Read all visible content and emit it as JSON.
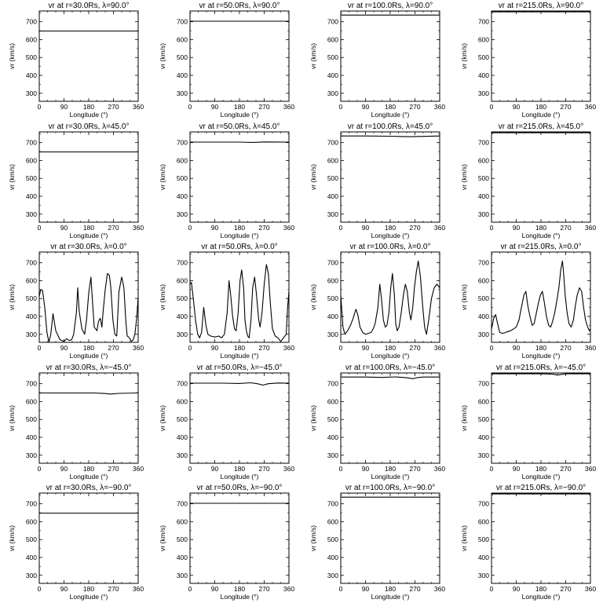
{
  "chart_data": {
    "type": "line",
    "layout": "5x4 grid",
    "xlabel": "Longitude (°)",
    "ylabel": "vr (km/s)",
    "xlim": [
      0,
      360
    ],
    "ylim": [
      255,
      760
    ],
    "xticks": [
      0,
      90,
      180,
      270,
      360
    ],
    "yticks": [
      300,
      400,
      500,
      600,
      700
    ],
    "line_color": "#000000",
    "grid": false,
    "panels": [
      {
        "title": "vr at r=30.0Rs, λ=90.0°",
        "radius": "30.0Rs",
        "latitude": "90.0°",
        "x": [
          0,
          360
        ],
        "y": [
          648,
          648
        ]
      },
      {
        "title": "vr at r=50.0Rs, λ=90.0°",
        "radius": "50.0Rs",
        "latitude": "90.0°",
        "x": [
          0,
          360
        ],
        "y": [
          703,
          703
        ]
      },
      {
        "title": "vr at r=100.0Rs, λ=90.0°",
        "radius": "100.0Rs",
        "latitude": "90.0°",
        "x": [
          0,
          360
        ],
        "y": [
          737,
          737
        ]
      },
      {
        "title": "vr at r=215.0Rs, λ=90.0°",
        "radius": "215.0Rs",
        "latitude": "90.0°",
        "x": [
          0,
          360
        ],
        "y": [
          755,
          755
        ]
      },
      {
        "title": "vr at r=30.0Rs, λ=45.0°",
        "radius": "30.0Rs",
        "latitude": "45.0°",
        "x": [
          0,
          360
        ],
        "y": [
          648,
          648
        ]
      },
      {
        "title": "vr at r=50.0Rs, λ=45.0°",
        "radius": "50.0Rs",
        "latitude": "45.0°",
        "x": [
          0,
          180,
          230,
          270,
          360
        ],
        "y": [
          703,
          703,
          701,
          704,
          703
        ]
      },
      {
        "title": "vr at r=100.0Rs, λ=45.0°",
        "radius": "100.0Rs",
        "latitude": "45.0°",
        "x": [
          0,
          90,
          180,
          250,
          300,
          360
        ],
        "y": [
          737,
          737,
          736,
          733,
          735,
          737
        ]
      },
      {
        "title": "vr at r=215.0Rs, λ=45.0°",
        "radius": "215.0Rs",
        "latitude": "45.0°",
        "x": [
          0,
          360
        ],
        "y": [
          755,
          755
        ]
      },
      {
        "title": "vr at r=30.0Rs, λ=0.0°",
        "radius": "30.0Rs",
        "latitude": "0.0°",
        "x": [
          0,
          5,
          12,
          20,
          28,
          35,
          42,
          50,
          60,
          75,
          90,
          100,
          110,
          118,
          125,
          135,
          140,
          145,
          155,
          165,
          172,
          180,
          188,
          195,
          200,
          210,
          215,
          222,
          228,
          232,
          240,
          248,
          255,
          260,
          268,
          275,
          282,
          290,
          300,
          308,
          315,
          320,
          325,
          330,
          335,
          342,
          348,
          355,
          360
        ],
        "y": [
          510,
          550,
          545,
          450,
          310,
          255,
          300,
          415,
          320,
          270,
          260,
          275,
          265,
          270,
          300,
          420,
          560,
          430,
          330,
          300,
          380,
          530,
          620,
          450,
          340,
          320,
          370,
          390,
          340,
          420,
          550,
          640,
          630,
          570,
          380,
          300,
          290,
          540,
          620,
          560,
          370,
          290,
          285,
          275,
          260,
          270,
          300,
          400,
          510
        ]
      },
      {
        "title": "vr at r=50.0Rs, λ=0.0°",
        "radius": "50.0Rs",
        "latitude": "0.0°",
        "x": [
          0,
          5,
          12,
          20,
          28,
          35,
          42,
          50,
          58,
          65,
          75,
          90,
          105,
          115,
          125,
          135,
          142,
          148,
          155,
          162,
          168,
          175,
          182,
          188,
          195,
          200,
          205,
          210,
          215,
          222,
          228,
          235,
          242,
          250,
          255,
          262,
          270,
          278,
          285,
          292,
          300,
          310,
          320,
          330,
          340,
          350,
          355,
          360
        ],
        "y": [
          580,
          590,
          500,
          380,
          300,
          280,
          310,
          450,
          350,
          300,
          290,
          285,
          290,
          280,
          300,
          420,
          600,
          520,
          400,
          330,
          320,
          420,
          600,
          660,
          560,
          380,
          320,
          290,
          280,
          380,
          560,
          620,
          520,
          380,
          340,
          420,
          580,
          690,
          640,
          480,
          330,
          290,
          280,
          260,
          280,
          300,
          450,
          540
        ]
      },
      {
        "title": "vr at r=100.0Rs, λ=0.0°",
        "radius": "100.0Rs",
        "latitude": "0.0°",
        "x": [
          0,
          8,
          15,
          25,
          35,
          45,
          55,
          62,
          70,
          80,
          90,
          100,
          110,
          118,
          125,
          135,
          142,
          148,
          155,
          162,
          168,
          175,
          182,
          188,
          195,
          200,
          205,
          212,
          220,
          228,
          235,
          242,
          250,
          255,
          262,
          268,
          275,
          282,
          290,
          298,
          305,
          312,
          320,
          330,
          340,
          350,
          360
        ],
        "y": [
          520,
          340,
          300,
          320,
          350,
          390,
          440,
          410,
          340,
          310,
          300,
          305,
          310,
          330,
          360,
          450,
          580,
          500,
          380,
          340,
          350,
          420,
          560,
          640,
          520,
          360,
          320,
          340,
          420,
          520,
          580,
          540,
          420,
          380,
          450,
          560,
          650,
          710,
          620,
          460,
          340,
          300,
          380,
          500,
          560,
          580,
          560
        ]
      },
      {
        "title": "vr at r=215.0Rs, λ=0.0°",
        "radius": "215.0Rs",
        "latitude": "0.0°",
        "x": [
          0,
          8,
          15,
          22,
          30,
          40,
          50,
          60,
          70,
          80,
          90,
          100,
          110,
          118,
          125,
          132,
          140,
          148,
          155,
          162,
          170,
          178,
          185,
          192,
          200,
          208,
          215,
          222,
          230,
          238,
          245,
          252,
          258,
          262,
          268,
          275,
          282,
          290,
          298,
          305,
          312,
          320,
          328,
          335,
          342,
          350,
          356,
          360
        ],
        "y": [
          330,
          390,
          410,
          360,
          310,
          305,
          310,
          315,
          320,
          330,
          340,
          380,
          460,
          520,
          540,
          460,
          400,
          350,
          360,
          410,
          470,
          520,
          540,
          480,
          400,
          350,
          340,
          370,
          420,
          490,
          560,
          660,
          710,
          650,
          520,
          420,
          360,
          340,
          380,
          460,
          520,
          560,
          540,
          450,
          380,
          340,
          320,
          330
        ]
      },
      {
        "title": "vr at r=30.0Rs, λ=−45.0°",
        "radius": "30.0Rs",
        "latitude": "−45.0°",
        "x": [
          0,
          200,
          240,
          260,
          290,
          360
        ],
        "y": [
          648,
          648,
          645,
          642,
          646,
          648
        ]
      },
      {
        "title": "vr at r=50.0Rs, λ=−45.0°",
        "radius": "50.0Rs",
        "latitude": "−45.0°",
        "x": [
          0,
          120,
          180,
          220,
          245,
          265,
          285,
          320,
          360
        ],
        "y": [
          703,
          703,
          701,
          705,
          700,
          692,
          700,
          704,
          703
        ]
      },
      {
        "title": "vr at r=100.0Rs, λ=−45.0°",
        "radius": "100.0Rs",
        "latitude": "−45.0°",
        "x": [
          0,
          90,
          150,
          200,
          240,
          262,
          280,
          300,
          360
        ],
        "y": [
          737,
          737,
          735,
          738,
          733,
          728,
          734,
          737,
          737
        ]
      },
      {
        "title": "vr at r=215.0Rs, λ=−45.0°",
        "radius": "215.0Rs",
        "latitude": "−45.0°",
        "x": [
          0,
          180,
          225,
          240,
          255,
          270,
          360
        ],
        "y": [
          755,
          755,
          753,
          748,
          752,
          755,
          755
        ]
      },
      {
        "title": "vr at r=30.0Rs, λ=−90.0°",
        "radius": "30.0Rs",
        "latitude": "−90.0°",
        "x": [
          0,
          360
        ],
        "y": [
          648,
          648
        ]
      },
      {
        "title": "vr at r=50.0Rs, λ=−90.0°",
        "radius": "50.0Rs",
        "latitude": "−90.0°",
        "x": [
          0,
          360
        ],
        "y": [
          703,
          703
        ]
      },
      {
        "title": "vr at r=100.0Rs, λ=−90.0°",
        "radius": "100.0Rs",
        "latitude": "−90.0°",
        "x": [
          0,
          360
        ],
        "y": [
          737,
          737
        ]
      },
      {
        "title": "vr at r=215.0Rs, λ=−90.0°",
        "radius": "215.0Rs",
        "latitude": "−90.0°",
        "x": [
          0,
          360
        ],
        "y": [
          755,
          755
        ]
      }
    ]
  }
}
